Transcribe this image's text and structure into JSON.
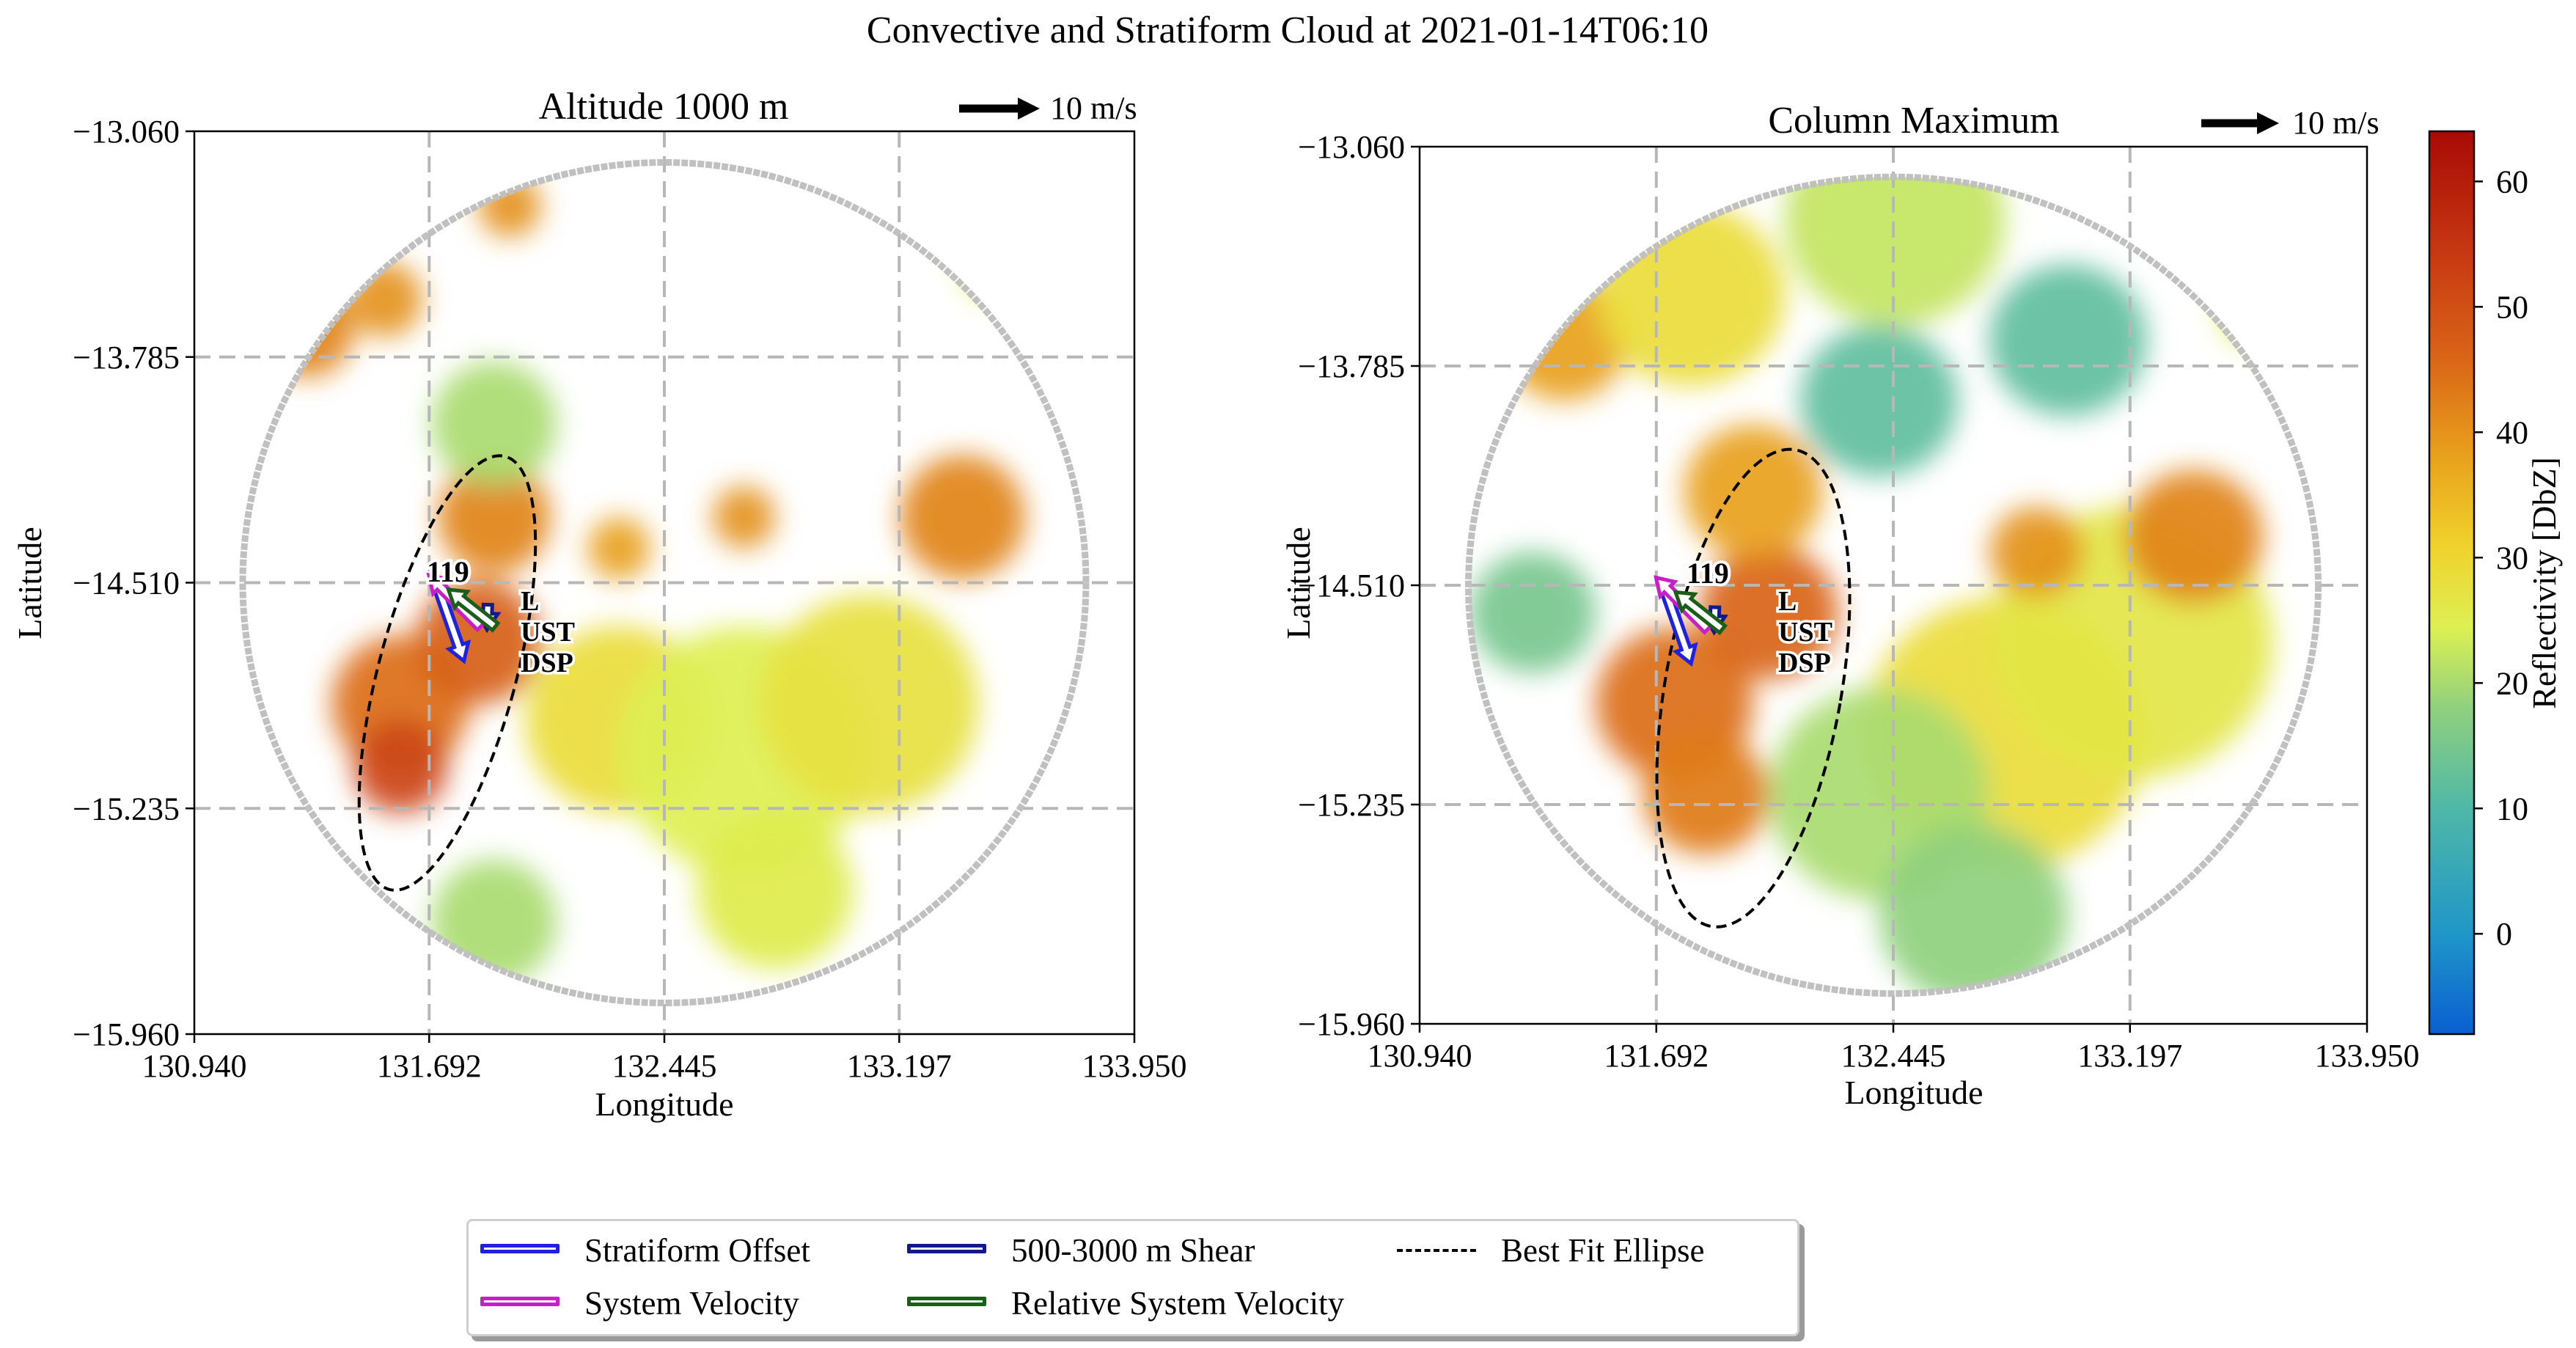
{
  "figure_title": "Convective and Stratiform Cloud at 2021-01-14T06:10",
  "colors": {
    "stratiform_offset": "#1e22e0",
    "system_velocity": "#c81ec8",
    "shear": "#121a8a",
    "relative_velocity": "#1a5e1a",
    "ellipse": "#000000",
    "grid": "#b7b7b7",
    "ring": "#c0c0c0"
  },
  "scale_arrow_label": "10 m/s",
  "markers": {
    "id_label": "119",
    "l_label": "L",
    "ust_label": "UST",
    "dsp_label": "DSP"
  },
  "legend": [
    {
      "label": "Stratiform Offset",
      "color_key": "stratiform_offset",
      "style": "bar"
    },
    {
      "label": "System Velocity",
      "color_key": "system_velocity",
      "style": "bar"
    },
    {
      "label": "500-3000 m Shear",
      "color_key": "shear",
      "style": "bar"
    },
    {
      "label": "Relative System Velocity",
      "color_key": "relative_velocity",
      "style": "bar"
    },
    {
      "label": "Best Fit Ellipse",
      "color_key": "ellipse",
      "style": "dash"
    }
  ],
  "colorbar": {
    "label": "Reflectivity [DbZ]",
    "min": -8,
    "max": 64,
    "ticks": [
      0,
      10,
      20,
      30,
      40,
      50,
      60
    ],
    "colormap": "HomeyerRainbow"
  },
  "chart_data": [
    {
      "type": "heatmap",
      "title": "Altitude 1000 m",
      "xlabel": "Longitude",
      "ylabel": "Latitude",
      "xlim": [
        130.94,
        133.95
      ],
      "ylim": [
        -15.96,
        -13.06
      ],
      "xticks": [
        "130.940",
        "131.692",
        "132.445",
        "133.197",
        "133.950"
      ],
      "yticks": [
        "-13.060",
        "-13.785",
        "-14.510",
        "-15.235",
        "-15.960"
      ],
      "grid": true,
      "radar_center": {
        "lon": 132.445,
        "lat": -14.51
      },
      "radar_radius_deg": 1.35,
      "system_center": {
        "lon": 131.692,
        "lat": -14.51
      },
      "ellipse": {
        "lon": 131.75,
        "lat": -14.8,
        "semi_major_deg": 0.72,
        "semi_minor_deg": 0.22,
        "tilt_deg": 15
      },
      "vectors_ms": {
        "stratiform_offset": [
          3.4,
          -9.7
        ],
        "system_velocity": [
          -6.4,
          6.4
        ],
        "shear": [
          -0.1,
          -3.1
        ],
        "relative_velocity": [
          -5.8,
          4.6
        ]
      },
      "reflectivity_cells": [
        {
          "lon": 131.6,
          "lat": -14.9,
          "dbz": 45,
          "r": 0.22
        },
        {
          "lon": 131.6,
          "lat": -15.1,
          "dbz": 52,
          "r": 0.15
        },
        {
          "lon": 131.85,
          "lat": -14.7,
          "dbz": 47,
          "r": 0.2
        },
        {
          "lon": 131.9,
          "lat": -14.3,
          "dbz": 42,
          "r": 0.18
        },
        {
          "lon": 131.55,
          "lat": -13.6,
          "dbz": 40,
          "r": 0.12
        },
        {
          "lon": 131.3,
          "lat": -13.7,
          "dbz": 42,
          "r": 0.15
        },
        {
          "lon": 131.95,
          "lat": -13.3,
          "dbz": 40,
          "r": 0.1
        },
        {
          "lon": 132.3,
          "lat": -14.95,
          "dbz": 28,
          "r": 0.3
        },
        {
          "lon": 132.7,
          "lat": -15.05,
          "dbz": 24,
          "r": 0.4
        },
        {
          "lon": 133.1,
          "lat": -14.9,
          "dbz": 27,
          "r": 0.35
        },
        {
          "lon": 132.3,
          "lat": -14.4,
          "dbz": 38,
          "r": 0.1
        },
        {
          "lon": 132.7,
          "lat": -14.3,
          "dbz": 40,
          "r": 0.1
        },
        {
          "lon": 133.4,
          "lat": -14.3,
          "dbz": 42,
          "r": 0.2
        },
        {
          "lon": 132.8,
          "lat": -15.5,
          "dbz": 25,
          "r": 0.25
        },
        {
          "lon": 131.9,
          "lat": -15.6,
          "dbz": 20,
          "r": 0.2
        },
        {
          "lon": 131.9,
          "lat": -14.0,
          "dbz": 20,
          "r": 0.2
        },
        {
          "lon": 133.5,
          "lat": -13.5,
          "dbz": 25,
          "r": 0.1
        }
      ]
    },
    {
      "type": "heatmap",
      "title": "Column Maximum",
      "xlabel": "Longitude",
      "ylabel": "Latitude",
      "xlim": [
        130.94,
        133.95
      ],
      "ylim": [
        -15.96,
        -13.06
      ],
      "xticks": [
        "130.940",
        "131.692",
        "132.445",
        "133.197",
        "133.950"
      ],
      "yticks": [
        "-13.060",
        "-13.785",
        "-14.510",
        "-15.235",
        "-15.960"
      ],
      "grid": true,
      "radar_center": {
        "lon": 132.445,
        "lat": -14.51
      },
      "radar_radius_deg": 1.35,
      "system_center": {
        "lon": 131.692,
        "lat": -14.51
      },
      "ellipse": {
        "lon": 132.0,
        "lat": -14.85,
        "semi_major_deg": 0.8,
        "semi_minor_deg": 0.28,
        "tilt_deg": 10
      },
      "vectors_ms": {
        "stratiform_offset": [
          3.4,
          -9.7
        ],
        "system_velocity": [
          -6.4,
          6.4
        ],
        "shear": [
          -0.1,
          -3.1
        ],
        "relative_velocity": [
          -5.8,
          4.6
        ]
      },
      "reflectivity_cells": [
        {
          "lon": 131.75,
          "lat": -14.9,
          "dbz": 45,
          "r": 0.25
        },
        {
          "lon": 131.85,
          "lat": -15.2,
          "dbz": 43,
          "r": 0.2
        },
        {
          "lon": 132.05,
          "lat": -14.6,
          "dbz": 46,
          "r": 0.22
        },
        {
          "lon": 132.0,
          "lat": -14.2,
          "dbz": 38,
          "r": 0.22
        },
        {
          "lon": 131.4,
          "lat": -13.7,
          "dbz": 38,
          "r": 0.2
        },
        {
          "lon": 131.8,
          "lat": -13.55,
          "dbz": 28,
          "r": 0.3
        },
        {
          "lon": 132.45,
          "lat": -13.3,
          "dbz": 22,
          "r": 0.35
        },
        {
          "lon": 132.8,
          "lat": -15.0,
          "dbz": 28,
          "r": 0.45
        },
        {
          "lon": 133.2,
          "lat": -14.7,
          "dbz": 26,
          "r": 0.45
        },
        {
          "lon": 132.4,
          "lat": -15.2,
          "dbz": 20,
          "r": 0.35
        },
        {
          "lon": 133.4,
          "lat": -14.35,
          "dbz": 42,
          "r": 0.22
        },
        {
          "lon": 132.9,
          "lat": -14.4,
          "dbz": 40,
          "r": 0.15
        },
        {
          "lon": 132.7,
          "lat": -15.6,
          "dbz": 18,
          "r": 0.3
        },
        {
          "lon": 131.3,
          "lat": -14.6,
          "dbz": 15,
          "r": 0.2
        },
        {
          "lon": 133.6,
          "lat": -13.6,
          "dbz": 25,
          "r": 0.12
        },
        {
          "lon": 133.0,
          "lat": -13.7,
          "dbz": 12,
          "r": 0.25
        },
        {
          "lon": 132.4,
          "lat": -13.9,
          "dbz": 12,
          "r": 0.25
        }
      ]
    }
  ]
}
